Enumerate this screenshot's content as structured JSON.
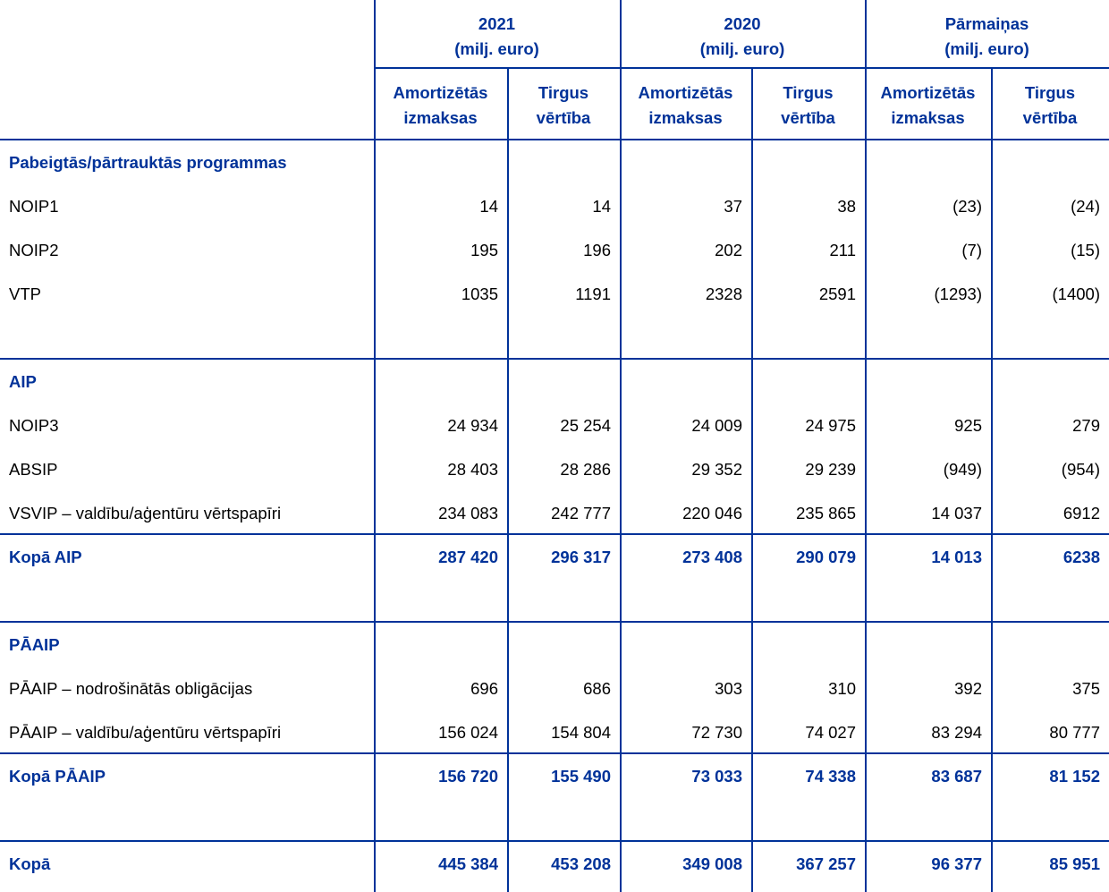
{
  "header": {
    "groups": [
      {
        "title": "2021",
        "unit": "(milj. euro)"
      },
      {
        "title": "2020",
        "unit": "(milj. euro)"
      },
      {
        "title": "Pārmaiņas",
        "unit": "(milj. euro)"
      }
    ],
    "sub_headers": [
      [
        "Amortizētās",
        "izmaksas"
      ],
      [
        "Tirgus",
        "vērtība"
      ],
      [
        "Amortizētās",
        "izmaksas"
      ],
      [
        "Tirgus",
        "vērtība"
      ],
      [
        "Amortizētās",
        "izmaksas"
      ],
      [
        "Tirgus",
        "vērtība"
      ]
    ]
  },
  "table": {
    "sections": [
      {
        "title": "Pabeigtās/pārtrauktās programmas",
        "rows": [
          {
            "label": "NOIP1",
            "values": [
              "14",
              "14",
              "37",
              "38",
              "(23)",
              "(24)"
            ]
          },
          {
            "label": "NOIP2",
            "values": [
              "195",
              "196",
              "202",
              "211",
              "(7)",
              "(15)"
            ]
          },
          {
            "label": "VTP",
            "values": [
              "1035",
              "1191",
              "2328",
              "2591",
              "(1293)",
              "(1400)"
            ]
          }
        ]
      },
      {
        "title": "AIP",
        "rows": [
          {
            "label": "NOIP3",
            "values": [
              "24 934",
              "25 254",
              "24 009",
              "24 975",
              "925",
              "279"
            ]
          },
          {
            "label": "ABSIP",
            "values": [
              "28 403",
              "28 286",
              "29 352",
              "29 239",
              "(949)",
              "(954)"
            ]
          },
          {
            "label": "VSVIP – valdību/aģentūru vērtspapīri",
            "values": [
              "234 083",
              "242 777",
              "220 046",
              "235 865",
              "14 037",
              "6912"
            ]
          }
        ],
        "total": {
          "label": "Kopā AIP",
          "values": [
            "287 420",
            "296 317",
            "273 408",
            "290 079",
            "14 013",
            "6238"
          ]
        }
      },
      {
        "title": "PĀAIP",
        "rows": [
          {
            "label": "PĀAIP – nodrošinātās obligācijas",
            "values": [
              "696",
              "686",
              "303",
              "310",
              "392",
              "375"
            ]
          },
          {
            "label": "PĀAIP – valdību/aģentūru vērtspapīri",
            "values": [
              "156 024",
              "154 804",
              "72 730",
              "74 027",
              "83 294",
              "80 777"
            ]
          }
        ],
        "total": {
          "label": "Kopā PĀAIP",
          "values": [
            "156 720",
            "155 490",
            "73 033",
            "74 338",
            "83 687",
            "81 152"
          ]
        }
      }
    ],
    "grand_total": {
      "label": "Kopā",
      "values": [
        "445 384",
        "453 208",
        "349 008",
        "367 257",
        "96 377",
        "85 951"
      ]
    }
  }
}
